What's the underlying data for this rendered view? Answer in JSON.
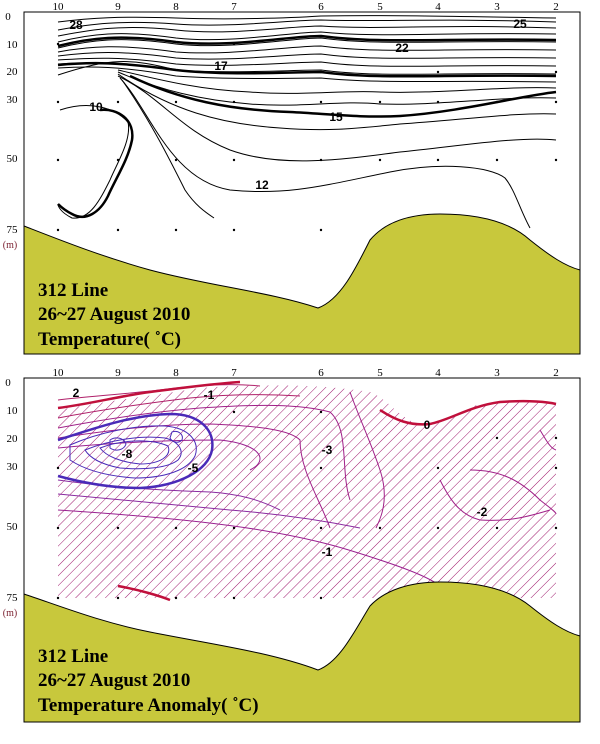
{
  "chart_data": [
    {
      "type": "contour",
      "title": "",
      "caption_lines": [
        "312 Line",
        "26~27 August 2010",
        "Temperature( ˚C)"
      ],
      "x_stations": [
        "10",
        "9",
        "8",
        "7",
        "6",
        "5",
        "4",
        "3",
        "2"
      ],
      "y_ticks": [
        "0",
        "10",
        "20",
        "30",
        "50",
        "75"
      ],
      "y_unit": "(m)",
      "contour_labels": [
        "28",
        "25",
        "22",
        "17",
        "15",
        "10",
        "12"
      ],
      "colors": {
        "lines": "#000000",
        "terrain": "#c8c83c"
      }
    },
    {
      "type": "contour",
      "title": "",
      "caption_lines": [
        "312 Line",
        "26~27 August 2010",
        "Temperature Anomaly( ˚C)"
      ],
      "x_stations": [
        "10",
        "9",
        "8",
        "7",
        "6",
        "5",
        "4",
        "3",
        "2"
      ],
      "y_ticks": [
        "0",
        "10",
        "20",
        "30",
        "50",
        "75"
      ],
      "y_unit": "(m)",
      "contour_labels": [
        "2",
        "-1",
        "-8",
        "-5",
        "-3",
        "0",
        "-2",
        "-1"
      ],
      "colors": {
        "hatch": "#a01a6e",
        "positive": "#c0103c",
        "negative": "#4a2ab8",
        "terrain": "#c8c83c"
      }
    }
  ]
}
